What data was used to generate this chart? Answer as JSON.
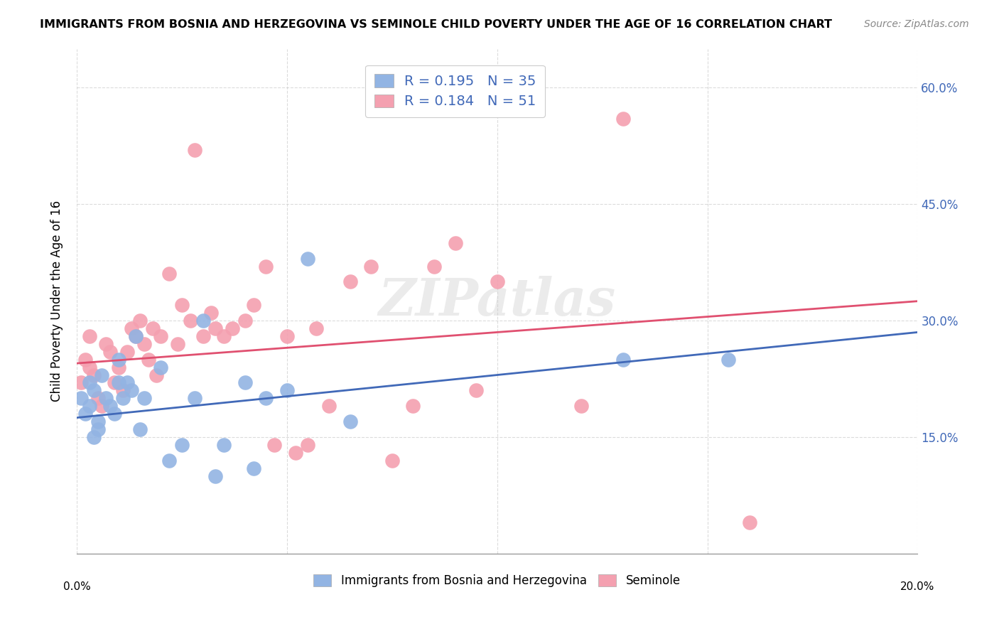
{
  "title": "IMMIGRANTS FROM BOSNIA AND HERZEGOVINA VS SEMINOLE CHILD POVERTY UNDER THE AGE OF 16 CORRELATION CHART",
  "source": "Source: ZipAtlas.com",
  "ylabel": "Child Poverty Under the Age of 16",
  "xlim": [
    0.0,
    0.2
  ],
  "ylim": [
    0.0,
    0.65
  ],
  "ytick_vals": [
    0.15,
    0.3,
    0.45,
    0.6
  ],
  "ytick_labels": [
    "15.0%",
    "30.0%",
    "45.0%",
    "60.0%"
  ],
  "blue_R": "0.195",
  "blue_N": "35",
  "pink_R": "0.184",
  "pink_N": "51",
  "legend1_label": "Immigrants from Bosnia and Herzegovina",
  "legend2_label": "Seminole",
  "blue_color": "#92b4e3",
  "pink_color": "#f4a0b0",
  "blue_line_color": "#4169b8",
  "pink_line_color": "#e05070",
  "watermark": "ZIPatlas",
  "blue_x": [
    0.001,
    0.002,
    0.003,
    0.003,
    0.004,
    0.004,
    0.005,
    0.005,
    0.006,
    0.007,
    0.008,
    0.009,
    0.01,
    0.01,
    0.011,
    0.012,
    0.013,
    0.014,
    0.015,
    0.016,
    0.02,
    0.022,
    0.025,
    0.028,
    0.03,
    0.033,
    0.035,
    0.04,
    0.042,
    0.045,
    0.05,
    0.055,
    0.065,
    0.13,
    0.155
  ],
  "blue_y": [
    0.2,
    0.18,
    0.22,
    0.19,
    0.15,
    0.21,
    0.17,
    0.16,
    0.23,
    0.2,
    0.19,
    0.18,
    0.22,
    0.25,
    0.2,
    0.22,
    0.21,
    0.28,
    0.16,
    0.2,
    0.24,
    0.12,
    0.14,
    0.2,
    0.3,
    0.1,
    0.14,
    0.22,
    0.11,
    0.2,
    0.21,
    0.38,
    0.17,
    0.25,
    0.25
  ],
  "pink_x": [
    0.001,
    0.002,
    0.003,
    0.003,
    0.004,
    0.005,
    0.006,
    0.007,
    0.008,
    0.009,
    0.01,
    0.011,
    0.012,
    0.013,
    0.014,
    0.015,
    0.016,
    0.017,
    0.018,
    0.019,
    0.02,
    0.022,
    0.024,
    0.025,
    0.027,
    0.028,
    0.03,
    0.032,
    0.033,
    0.035,
    0.037,
    0.04,
    0.042,
    0.045,
    0.047,
    0.05,
    0.052,
    0.055,
    0.057,
    0.06,
    0.065,
    0.07,
    0.075,
    0.08,
    0.085,
    0.09,
    0.095,
    0.1,
    0.12,
    0.13,
    0.16
  ],
  "pink_y": [
    0.22,
    0.25,
    0.24,
    0.28,
    0.23,
    0.2,
    0.19,
    0.27,
    0.26,
    0.22,
    0.24,
    0.21,
    0.26,
    0.29,
    0.28,
    0.3,
    0.27,
    0.25,
    0.29,
    0.23,
    0.28,
    0.36,
    0.27,
    0.32,
    0.3,
    0.52,
    0.28,
    0.31,
    0.29,
    0.28,
    0.29,
    0.3,
    0.32,
    0.37,
    0.14,
    0.28,
    0.13,
    0.14,
    0.29,
    0.19,
    0.35,
    0.37,
    0.12,
    0.19,
    0.37,
    0.4,
    0.21,
    0.35,
    0.19,
    0.56,
    0.04
  ],
  "blue_trend_x": [
    0.0,
    0.2
  ],
  "blue_trend_y": [
    0.175,
    0.285
  ],
  "pink_trend_x": [
    0.0,
    0.2
  ],
  "pink_trend_y": [
    0.245,
    0.325
  ]
}
